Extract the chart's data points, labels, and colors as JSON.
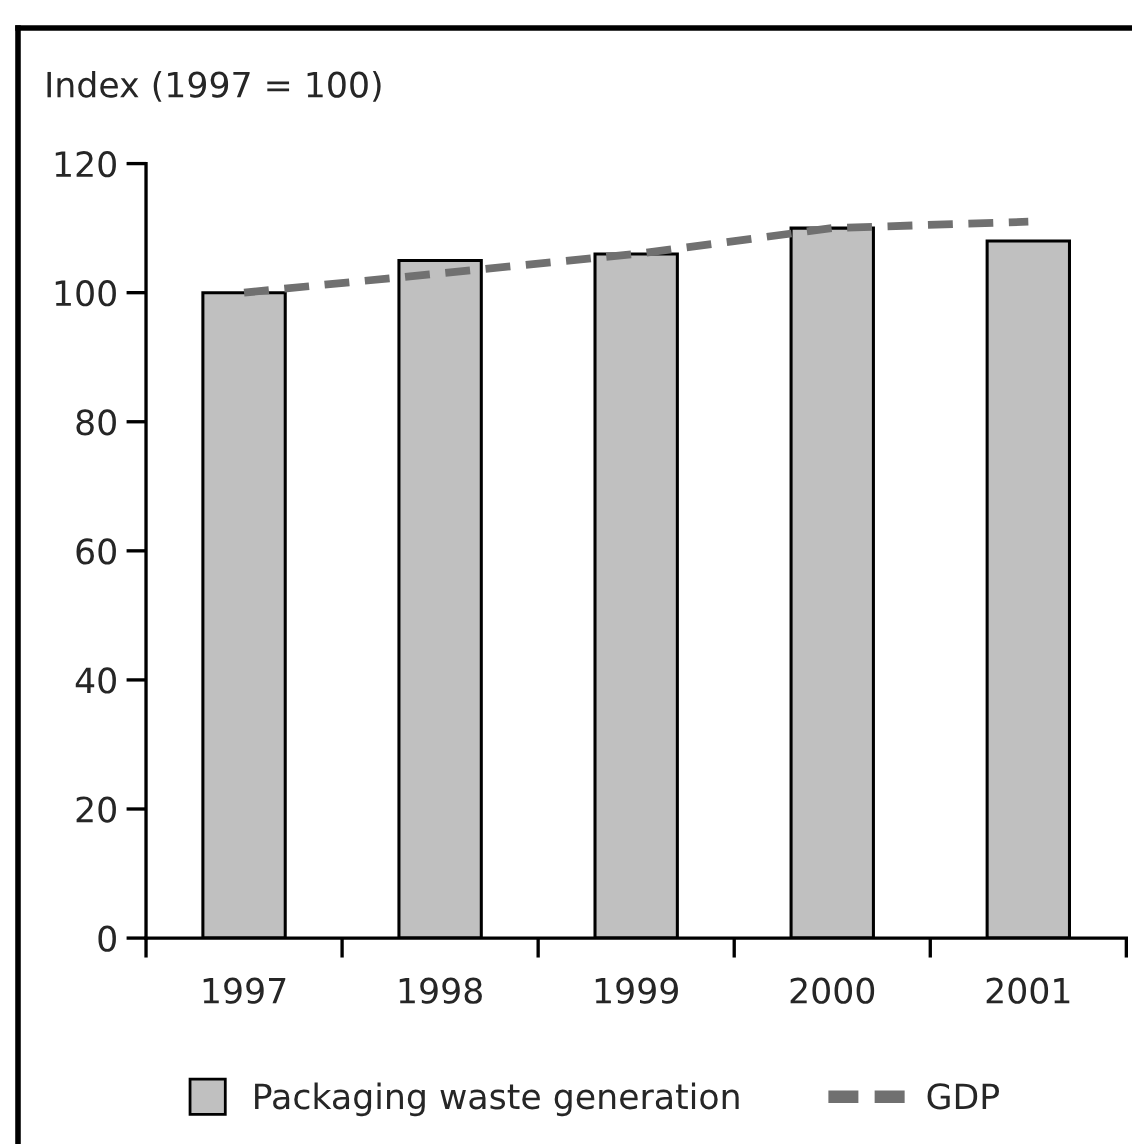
{
  "chart_data": {
    "type": "bar",
    "ylabel": "Index (1997 = 100)",
    "categories": [
      "1997",
      "1998",
      "1999",
      "2000",
      "2001"
    ],
    "series": [
      {
        "name": "Packaging waste generation",
        "color": "#c0c0c0",
        "values": [
          100,
          105,
          106,
          110,
          108
        ]
      },
      {
        "name": "GDP",
        "type": "line",
        "color": "#707070",
        "line_style": "dashed",
        "values": [
          100,
          103,
          106,
          110,
          111
        ]
      }
    ],
    "ylim": [
      0,
      120
    ],
    "yticks": [
      0,
      20,
      40,
      60,
      80,
      100,
      120
    ],
    "grid": false,
    "legend": "bottom"
  }
}
